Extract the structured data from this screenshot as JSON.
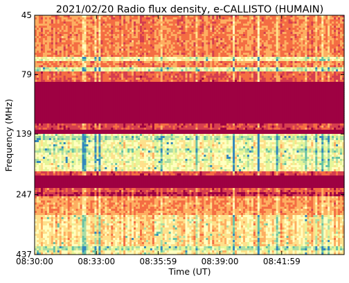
{
  "chart_data": {
    "type": "heatmap",
    "title": "2021/02/20  Radio flux density, e-CALLISTO (HUMAIN)",
    "xlabel": "Time (UT)",
    "ylabel": "Frequency (MHz)",
    "x_ticks": [
      "08:30:00",
      "08:33:00",
      "08:35:59",
      "08:39:00",
      "08:41:59"
    ],
    "y_ticks": [
      "45",
      "79",
      "139",
      "247",
      "437"
    ],
    "y_scale": "log",
    "colormap": [
      "#9e0142",
      "#d53e4f",
      "#f46d43",
      "#fdae61",
      "#fee08b",
      "#ffffbf",
      "#e6f598",
      "#abdda4",
      "#66c2a5",
      "#3288bd"
    ],
    "grid": false,
    "legend": "none",
    "bands": [
      {
        "from": 45,
        "to": 76,
        "level": 0.28
      },
      {
        "from": 67,
        "to": 69,
        "level": 0.55
      },
      {
        "from": 74,
        "to": 76,
        "level": 0.62
      },
      {
        "from": 76,
        "to": 84,
        "level": 0.22
      },
      {
        "from": 84,
        "to": 125,
        "level": 0.0
      },
      {
        "from": 125,
        "to": 133,
        "level": 0.16
      },
      {
        "from": 133,
        "to": 139,
        "level": 0.0
      },
      {
        "from": 139,
        "to": 200,
        "level": 0.55
      },
      {
        "from": 142,
        "to": 146,
        "level": 0.72
      },
      {
        "from": 160,
        "to": 166,
        "level": 0.68
      },
      {
        "from": 176,
        "to": 182,
        "level": 0.62
      },
      {
        "from": 200,
        "to": 206,
        "level": 0.18
      },
      {
        "from": 206,
        "to": 232,
        "level": 0.0
      },
      {
        "from": 232,
        "to": 240,
        "level": 0.2
      },
      {
        "from": 240,
        "to": 252,
        "level": 0.1
      },
      {
        "from": 252,
        "to": 300,
        "level": 0.32
      },
      {
        "from": 300,
        "to": 400,
        "level": 0.45
      },
      {
        "from": 400,
        "to": 418,
        "level": 0.7
      },
      {
        "from": 418,
        "to": 437,
        "level": 0.5
      }
    ]
  }
}
